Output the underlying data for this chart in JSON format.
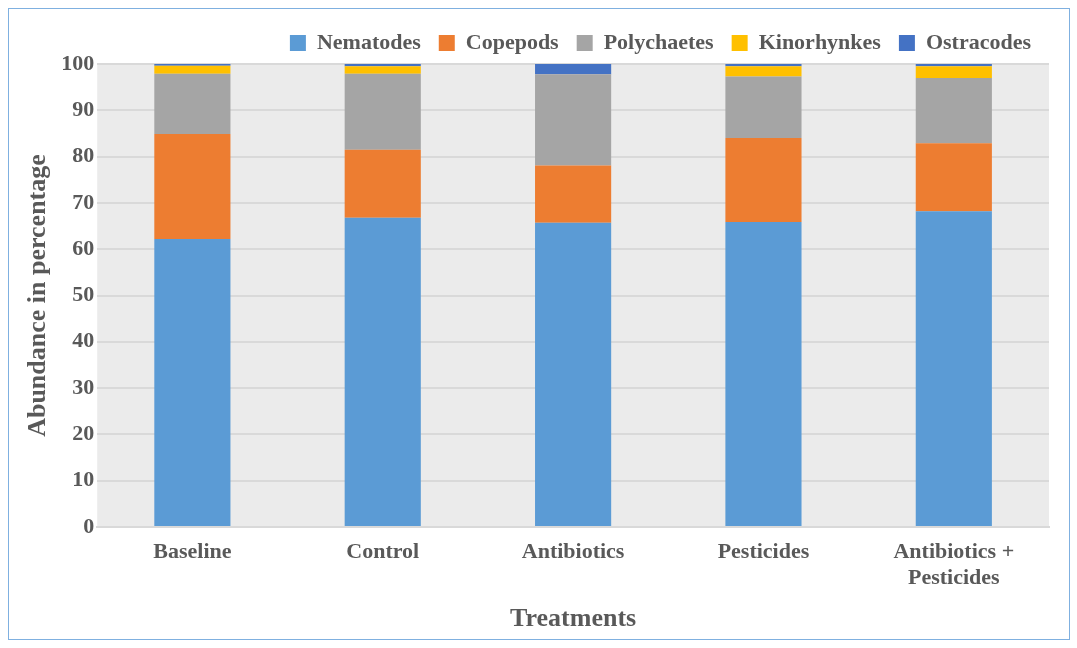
{
  "chart_data": {
    "type": "bar",
    "stacked": true,
    "xlabel": "Treatments",
    "ylabel": "Abundance in percentage",
    "categories": [
      "Baseline",
      "Control",
      "Antibiotics",
      "Pesticides",
      "Antibiotics + Pesticides"
    ],
    "series": [
      {
        "name": "Nematodes",
        "color": "#5b9bd5",
        "values": [
          62.2,
          66.8,
          65.7,
          65.9,
          68.2
        ]
      },
      {
        "name": "Copepods",
        "color": "#ed7d31",
        "values": [
          22.7,
          14.7,
          12.4,
          18.1,
          14.7
        ]
      },
      {
        "name": "Polychaetes",
        "color": "#a5a5a5",
        "values": [
          13.0,
          16.4,
          19.7,
          13.3,
          14.1
        ]
      },
      {
        "name": "Kinorhynkes",
        "color": "#ffc000",
        "values": [
          1.7,
          1.6,
          0,
          2.2,
          2.5
        ]
      },
      {
        "name": "Ostracodes",
        "color": "#4472c4",
        "values": [
          0.4,
          0.5,
          2.2,
          0.5,
          0.5
        ]
      }
    ],
    "ylim": [
      0,
      100
    ],
    "yticks": [
      0,
      10,
      20,
      30,
      40,
      50,
      60,
      70,
      80,
      90,
      100
    ],
    "grid": "y",
    "legend": "top"
  }
}
